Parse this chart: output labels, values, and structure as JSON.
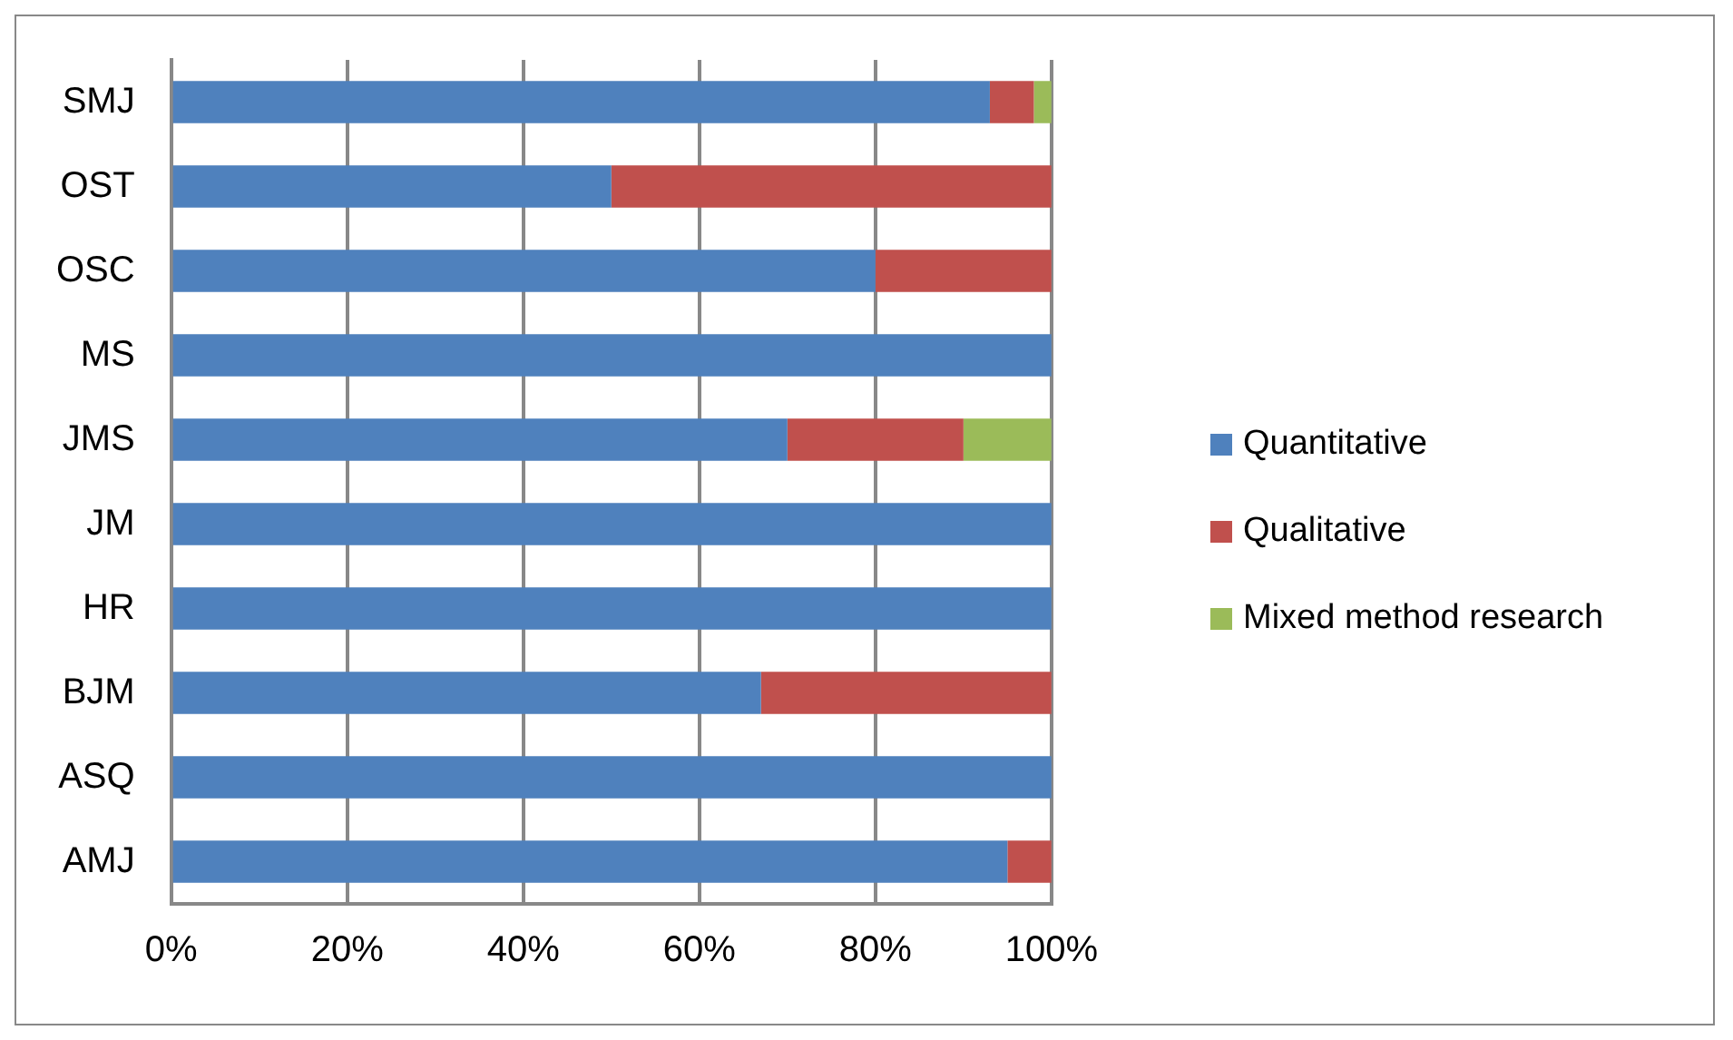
{
  "chart_data": {
    "type": "bar",
    "orientation": "horizontal",
    "stacked": true,
    "categories": [
      "SMJ",
      "OST",
      "OSC",
      "MS",
      "JMS",
      "JM",
      "HR",
      "BJM",
      "ASQ",
      "AMJ"
    ],
    "series": [
      {
        "name": "Quantitative",
        "color": "#4f81bd",
        "values": [
          93,
          50,
          80,
          100,
          70,
          100,
          100,
          67,
          100,
          95
        ]
      },
      {
        "name": "Qualitative",
        "color": "#c0504d",
        "values": [
          5,
          50,
          20,
          0,
          20,
          0,
          0,
          33,
          0,
          5
        ]
      },
      {
        "name": "Mixed method research",
        "color": "#9bbb59",
        "values": [
          2,
          0,
          0,
          0,
          10,
          0,
          0,
          0,
          0,
          0
        ]
      }
    ],
    "xlim": [
      0,
      100
    ],
    "xticks": [
      {
        "value": 0,
        "label": "0%"
      },
      {
        "value": 20,
        "label": "20%"
      },
      {
        "value": 40,
        "label": "40%"
      },
      {
        "value": 60,
        "label": "60%"
      },
      {
        "value": 80,
        "label": "80%"
      },
      {
        "value": 100,
        "label": "100%"
      }
    ],
    "grid": "x",
    "legend": "right"
  }
}
